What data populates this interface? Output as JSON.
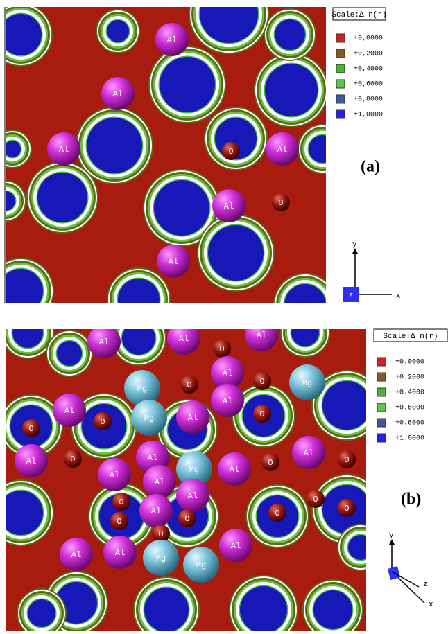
{
  "panels": [
    {
      "label": "(a)",
      "legend": {
        "title": "Scale:Δ n(r)",
        "entries": [
          {
            "label": "+0,0000",
            "color": "#d42020"
          },
          {
            "label": "+0,2000",
            "color": "#8a5a20"
          },
          {
            "label": "+0,4000",
            "color": "#50b030"
          },
          {
            "label": "+0,6000",
            "color": "#5cc448"
          },
          {
            "label": "+0,8000",
            "color": "#3a5a9a"
          },
          {
            "label": "+1,0000",
            "color": "#2020f0"
          }
        ]
      },
      "atoms": [
        "Al",
        "Al",
        "Al",
        "O",
        "Al",
        "Al",
        "O",
        "Al"
      ],
      "axes": [
        "y",
        "z",
        "x"
      ]
    },
    {
      "label": "(b)",
      "legend": {
        "title": "Scale:Δ n(r)",
        "entries": [
          {
            "label": "+0.0000",
            "color": "#d42020"
          },
          {
            "label": "+0.2000",
            "color": "#8a5a20"
          },
          {
            "label": "+0.4000",
            "color": "#50b030"
          },
          {
            "label": "+0.6000",
            "color": "#5cc448"
          },
          {
            "label": "+0.8000",
            "color": "#3a5a9a"
          },
          {
            "label": "+1.0000",
            "color": "#2020f0"
          }
        ]
      },
      "atoms": [
        "Al",
        "Al",
        "O",
        "Al",
        "Al",
        "O",
        "O",
        "Mg",
        "Mg",
        "Al",
        "O",
        "O",
        "Mg",
        "Al",
        "Al",
        "O",
        "O",
        "Al",
        "Al",
        "Al",
        "Al",
        "Mg",
        "Al",
        "O",
        "Al",
        "O",
        "O",
        "Al",
        "Al",
        "O",
        "O",
        "O",
        "O",
        "O",
        "O",
        "Mg",
        "Al",
        "Al",
        "Mg",
        "Al"
      ],
      "axes": [
        "y",
        "z",
        "x"
      ]
    }
  ]
}
